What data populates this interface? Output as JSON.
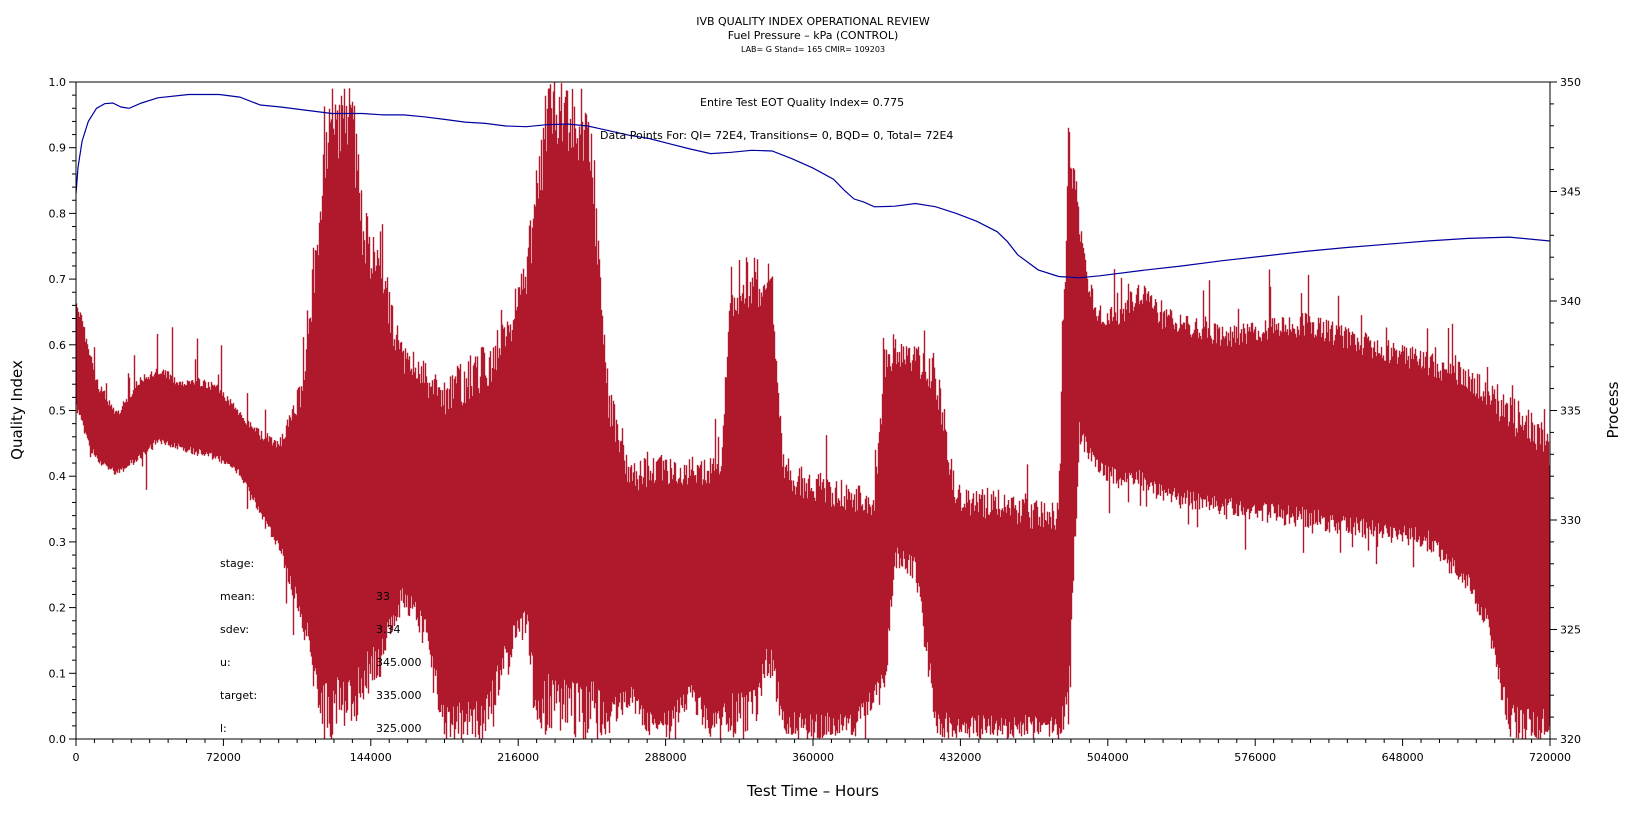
{
  "chart_data": {
    "type": "line",
    "title": "IVB QUALITY INDEX OPERATIONAL REVIEW",
    "subtitle": "Fuel Pressure – kPa (CONTROL)",
    "subtitle2": "LAB= G Stand= 165 CMIR= 109203",
    "xlabel": "Test Time – Hours",
    "ylabel_left": "Quality Index",
    "ylabel_right": "Process",
    "xlim": [
      0,
      720000
    ],
    "ylim_left": [
      0,
      1.0
    ],
    "ylim_right": [
      320,
      350
    ],
    "x_ticks": [
      0,
      72000,
      144000,
      216000,
      288000,
      360000,
      432000,
      504000,
      576000,
      648000,
      720000
    ],
    "x_tick_labels": [
      "0",
      "72000",
      "144000",
      "216000",
      "288000",
      "360000",
      "432000",
      "504000",
      "576000",
      "648000",
      "720000"
    ],
    "y_left_ticks": [
      0.0,
      0.1,
      0.2,
      0.3,
      0.4,
      0.5,
      0.6,
      0.7,
      0.8,
      0.9,
      1.0
    ],
    "y_left_tick_labels": [
      "0.0",
      "0.1",
      "0.2",
      "0.3",
      "0.4",
      "0.5",
      "0.6",
      "0.7",
      "0.8",
      "0.9",
      "1.0"
    ],
    "y_right_ticks": [
      320,
      325,
      330,
      335,
      340,
      345,
      350
    ],
    "y_right_tick_labels": [
      "320",
      "325",
      "330",
      "335",
      "340",
      "345",
      "350"
    ],
    "annotation_line1": "Entire Test EOT Quality Index=  0.775",
    "annotation_line2": "Data Points For: QI=  72E4, Transitions=     0, BQD=     0, Total=  72E4",
    "stats_labels": [
      "stage:",
      "mean:",
      "sdev:",
      "u:",
      "target:",
      "l:"
    ],
    "stats_values": [
      "",
      "33",
      "3.34",
      "345.000",
      "335.000",
      "325.000"
    ],
    "series": [
      {
        "axis": "left",
        "color": "#0000a0",
        "x": [
          0,
          1000,
          3000,
          6000,
          10000,
          14000,
          18000,
          22000,
          26000,
          32000,
          40000,
          55000,
          70000,
          80000,
          90000,
          100000,
          110000,
          125000,
          140000,
          150000,
          160000,
          170000,
          180000,
          190000,
          200000,
          210000,
          220000,
          230000,
          240000,
          250000,
          260000,
          270000,
          280000,
          290000,
          300000,
          310000,
          320000,
          330000,
          340000,
          350000,
          360000,
          370000,
          375000,
          380000,
          385000,
          390000,
          400000,
          410000,
          420000,
          430000,
          440000,
          450000,
          455000,
          460000,
          470000,
          480000,
          490000,
          500000,
          520000,
          540000,
          560000,
          580000,
          600000,
          620000,
          640000,
          660000,
          680000,
          700000,
          720000
        ],
        "y": [
          0.83,
          0.87,
          0.91,
          0.94,
          0.96,
          0.967,
          0.968,
          0.962,
          0.96,
          0.968,
          0.976,
          0.981,
          0.981,
          0.977,
          0.965,
          0.962,
          0.958,
          0.952,
          0.952,
          0.95,
          0.95,
          0.947,
          0.943,
          0.939,
          0.937,
          0.933,
          0.932,
          0.935,
          0.936,
          0.933,
          0.926,
          0.919,
          0.914,
          0.906,
          0.898,
          0.891,
          0.893,
          0.896,
          0.895,
          0.883,
          0.869,
          0.852,
          0.836,
          0.822,
          0.817,
          0.81,
          0.811,
          0.815,
          0.81,
          0.8,
          0.788,
          0.772,
          0.757,
          0.737,
          0.714,
          0.704,
          0.702,
          0.705,
          0.713,
          0.72,
          0.728,
          0.735,
          0.742,
          0.748,
          0.753,
          0.758,
          0.762,
          0.764,
          0.758
        ]
      },
      {
        "axis": "left",
        "color": "#b0182c",
        "x": [
          0,
          5000,
          10000,
          20000,
          30000,
          40000,
          50000,
          60000,
          70000,
          80000,
          90000,
          100000,
          110000,
          115000,
          120000,
          125000,
          130000,
          135000,
          140000,
          150000,
          160000,
          170000,
          180000,
          190000,
          200000,
          210000,
          220000,
          225000,
          230000,
          235000,
          240000,
          245000,
          250000,
          255000,
          260000,
          270000,
          280000,
          290000,
          300000,
          310000,
          315000,
          320000,
          330000,
          340000,
          345000,
          350000,
          360000,
          370000,
          380000,
          390000,
          395000,
          400000,
          410000,
          420000,
          430000,
          440000,
          450000,
          460000,
          470000,
          480000,
          485000,
          490000,
          495000,
          500000,
          510000,
          520000,
          530000,
          540000,
          560000,
          580000,
          600000,
          620000,
          640000,
          660000,
          680000,
          690000,
          700000,
          710000,
          720000
        ],
        "y_low": [
          0.5,
          0.45,
          0.42,
          0.4,
          0.42,
          0.45,
          0.44,
          0.43,
          0.42,
          0.4,
          0.34,
          0.28,
          0.17,
          0.1,
          0.0,
          0.0,
          0.0,
          0.0,
          0.05,
          0.1,
          0.2,
          0.15,
          0.0,
          0.0,
          0.0,
          0.1,
          0.15,
          0.0,
          0.0,
          0.0,
          0.0,
          0.0,
          0.0,
          0.0,
          0.0,
          0.05,
          0.0,
          0.0,
          0.05,
          0.0,
          0.0,
          0.0,
          0.0,
          0.1,
          0.0,
          0.0,
          0.0,
          0.0,
          0.0,
          0.05,
          0.05,
          0.26,
          0.24,
          0.0,
          0.0,
          0.0,
          0.0,
          0.0,
          0.0,
          0.0,
          0.0,
          0.45,
          0.42,
          0.4,
          0.38,
          0.38,
          0.36,
          0.35,
          0.34,
          0.33,
          0.32,
          0.31,
          0.3,
          0.29,
          0.22,
          0.15,
          0.0,
          0.0,
          0.0
        ],
        "y_high": [
          0.68,
          0.62,
          0.55,
          0.5,
          0.55,
          0.57,
          0.55,
          0.55,
          0.54,
          0.5,
          0.47,
          0.46,
          0.55,
          0.7,
          0.88,
          1.0,
          1.0,
          1.0,
          0.82,
          0.72,
          0.6,
          0.58,
          0.55,
          0.58,
          0.6,
          0.64,
          0.74,
          0.88,
          1.0,
          1.0,
          1.0,
          1.0,
          1.0,
          0.8,
          0.55,
          0.42,
          0.43,
          0.44,
          0.43,
          0.44,
          0.45,
          0.72,
          0.75,
          0.72,
          0.45,
          0.42,
          0.41,
          0.4,
          0.39,
          0.38,
          0.6,
          0.61,
          0.6,
          0.59,
          0.39,
          0.38,
          0.38,
          0.37,
          0.36,
          0.36,
          1.0,
          0.8,
          0.7,
          0.66,
          0.66,
          0.7,
          0.66,
          0.65,
          0.63,
          0.64,
          0.65,
          0.63,
          0.61,
          0.59,
          0.57,
          0.55,
          0.53,
          0.5,
          0.47
        ]
      }
    ]
  }
}
